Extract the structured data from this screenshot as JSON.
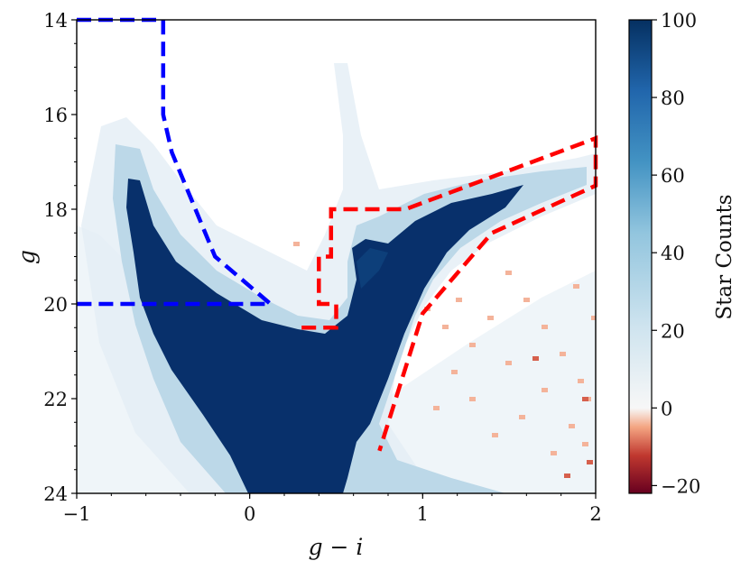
{
  "chart_data": {
    "type": "heatmap",
    "title": "",
    "xlabel": "g − i",
    "ylabel": "g",
    "xlim": [
      -1,
      2
    ],
    "ylim": [
      24,
      14
    ],
    "y_inverted": true,
    "x_ticks": [
      -1,
      0,
      1,
      2
    ],
    "x_tick_labels": [
      "−1",
      "0",
      "1",
      "2"
    ],
    "y_ticks": [
      14,
      16,
      18,
      20,
      22,
      24
    ],
    "y_tick_labels": [
      "14",
      "16",
      "18",
      "20",
      "22",
      "24"
    ],
    "colorbar": {
      "label": "Star Counts",
      "range": [
        -22,
        100
      ],
      "ticks": [
        -20,
        0,
        20,
        40,
        60,
        80,
        100
      ],
      "tick_labels": [
        "−20",
        "0",
        "20",
        "40",
        "60",
        "80",
        "100"
      ],
      "colormap": "RdBu",
      "colors": [
        "#67001f",
        "#d6604d",
        "#fddbc7",
        "#f7f7f7",
        "#d1e5f0",
        "#4393c3",
        "#053061"
      ]
    },
    "overlays": [
      {
        "name": "blue-region",
        "color": "#0000ff",
        "style": "dashed",
        "points": [
          [
            -1,
            14
          ],
          [
            -0.5,
            14
          ],
          [
            -0.5,
            16
          ],
          [
            -0.45,
            16.8
          ],
          [
            -0.2,
            19
          ],
          [
            0.12,
            20
          ],
          [
            -1,
            20
          ]
        ]
      },
      {
        "name": "red-region",
        "color": "#ff0000",
        "style": "dashed",
        "points": [
          [
            0.3,
            20.5
          ],
          [
            0.5,
            20.5
          ],
          [
            0.5,
            20
          ],
          [
            0.4,
            20
          ],
          [
            0.4,
            19
          ],
          [
            0.47,
            19
          ],
          [
            0.47,
            18
          ],
          [
            0.9,
            18
          ],
          [
            2,
            16.5
          ],
          [
            2,
            17.5
          ],
          [
            1.4,
            18.5
          ],
          [
            1,
            20.2
          ],
          [
            0.75,
            23.1
          ]
        ]
      }
    ]
  }
}
